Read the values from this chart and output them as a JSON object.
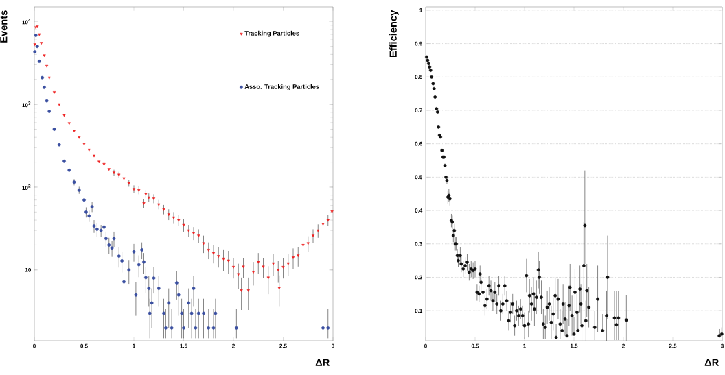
{
  "chart_data": [
    {
      "type": "scatter",
      "xlabel": "ΔR",
      "ylabel": "Events",
      "xlim": [
        0,
        3
      ],
      "xticks": [
        0,
        0.5,
        1,
        1.5,
        2,
        2.5,
        3
      ],
      "ylim": [
        1.4,
        15000
      ],
      "yticks": [
        {
          "value": 10,
          "label": "10"
        },
        {
          "value": 100,
          "label": "10$^{2}$"
        },
        {
          "value": 1000,
          "label": "10$^{3}$"
        },
        {
          "value": 10000,
          "label": "10$^{4}$"
        }
      ],
      "log": "y",
      "legend": "top right",
      "series": [
        {
          "name": "Tracking Particles",
          "color": "#ee2222",
          "marker": "triangle",
          "x": [
            0.005,
            0.015,
            0.03,
            0.05,
            0.07,
            0.1,
            0.125,
            0.15,
            0.2,
            0.25,
            0.3,
            0.35,
            0.4,
            0.45,
            0.5,
            0.55,
            0.6,
            0.65,
            0.7,
            0.75,
            0.8,
            0.85,
            0.9,
            0.95,
            1.0,
            1.05,
            1.1,
            1.12,
            1.15,
            1.2,
            1.25,
            1.3,
            1.35,
            1.4,
            1.45,
            1.5,
            1.55,
            1.6,
            1.65,
            1.7,
            1.75,
            1.8,
            1.85,
            1.9,
            1.95,
            2.0,
            2.05,
            2.08,
            2.1,
            2.15,
            2.2,
            2.25,
            2.3,
            2.35,
            2.4,
            2.45,
            2.46,
            2.5,
            2.55,
            2.6,
            2.65,
            2.7,
            2.75,
            2.8,
            2.85,
            2.9,
            2.95,
            2.99
          ],
          "values": [
            5300,
            8500,
            8700,
            7000,
            5500,
            3900,
            2900,
            2100,
            1400,
            1000,
            740,
            590,
            480,
            400,
            334,
            283,
            240,
            203,
            190,
            165,
            150,
            141,
            128,
            112,
            95,
            92,
            64,
            83,
            75,
            73,
            62,
            54,
            47,
            43,
            40,
            35,
            30,
            28,
            26,
            21,
            17.5,
            16,
            14.7,
            13.7,
            13,
            10.9,
            8.9,
            5.7,
            11,
            5.7,
            9.5,
            12.5,
            11,
            8.1,
            12,
            10,
            6.1,
            10.9,
            12,
            14.2,
            15,
            20,
            21,
            26,
            30,
            36,
            40,
            51
          ],
          "errors": [
            null,
            null,
            null,
            null,
            null,
            null,
            null,
            null,
            null,
            null,
            null,
            null,
            null,
            null,
            null,
            null,
            null,
            null,
            null,
            null,
            12,
            12,
            11,
            11,
            10,
            10,
            8,
            9,
            9,
            9,
            8,
            7,
            7,
            7,
            6,
            6,
            5,
            5,
            5,
            5,
            4,
            4,
            4,
            4,
            4,
            3,
            3,
            2.4,
            3,
            2.4,
            3,
            3.5,
            3,
            3,
            3.5,
            3,
            2.5,
            3,
            3.5,
            4,
            4,
            4.5,
            4.5,
            5,
            5.5,
            6,
            6,
            7
          ]
        },
        {
          "name": "Asso. Tracking Particles",
          "color": "#3a4fa0",
          "marker": "circle",
          "x": [
            0.005,
            0.015,
            0.03,
            0.05,
            0.08,
            0.1,
            0.125,
            0.15,
            0.2,
            0.25,
            0.3,
            0.35,
            0.4,
            0.45,
            0.5,
            0.52,
            0.55,
            0.58,
            0.6,
            0.63,
            0.67,
            0.7,
            0.72,
            0.75,
            0.78,
            0.8,
            0.85,
            0.88,
            0.9,
            0.95,
            1.0,
            1.02,
            1.05,
            1.08,
            1.1,
            1.12,
            1.15,
            1.16,
            1.18,
            1.2,
            1.25,
            1.3,
            1.32,
            1.35,
            1.38,
            1.43,
            1.45,
            1.48,
            1.5,
            1.55,
            1.58,
            1.6,
            1.62,
            1.65,
            1.7,
            1.75,
            1.8,
            1.82,
            2.03,
            2.9,
            2.95
          ],
          "values": [
            4300,
            6800,
            5000,
            3300,
            2100,
            1600,
            1100,
            820,
            500,
            325,
            205,
            160,
            115,
            92,
            70,
            50,
            45,
            58,
            34,
            31,
            30,
            33,
            24,
            20,
            18.4,
            24,
            14.7,
            12.9,
            7.2,
            10,
            16.6,
            5,
            11.6,
            17.5,
            12.5,
            8.1,
            6,
            3,
            4,
            8,
            6,
            3,
            2,
            4,
            2,
            7,
            5,
            3,
            2,
            4,
            3,
            6,
            2,
            3,
            3,
            2,
            2,
            3,
            2,
            2,
            2
          ],
          "errors": [
            null,
            null,
            null,
            null,
            null,
            null,
            null,
            null,
            null,
            null,
            null,
            null,
            10,
            9,
            8,
            7,
            7,
            8,
            6,
            6,
            5,
            6,
            5,
            4.5,
            4,
            5,
            4,
            3.6,
            2.7,
            3.2,
            4,
            2.2,
            3.4,
            4,
            3.5,
            2.8,
            2.4,
            1.5,
            2,
            2.8,
            2.4,
            1.5,
            [
              1.5,
              3.4
            ],
            2,
            [
              1.5,
              3.4
            ],
            2.6,
            2.2,
            1.5,
            [
              1.5,
              3.4
            ],
            2,
            1.5,
            2.4,
            [
              1.5,
              3.4
            ],
            1.5,
            1.5,
            [
              1.5,
              3.4
            ],
            [
              1.5,
              3.4
            ],
            1.5,
            [
              1.5,
              3.4
            ],
            [
              1.5,
              3.4
            ],
            [
              1.5,
              3.4
            ]
          ]
        }
      ]
    },
    {
      "type": "scatter",
      "xlabel": "ΔR",
      "ylabel": "Efficiency",
      "xlim": [
        0,
        3
      ],
      "xticks": [
        0,
        0.5,
        1,
        1.5,
        2,
        2.5,
        3
      ],
      "ylim": [
        0.01,
        1.01
      ],
      "yticks": [
        0.1,
        0.2,
        0.3,
        0.4,
        0.5,
        0.6,
        0.7,
        0.8,
        0.9,
        1
      ],
      "grid": "y",
      "series": [
        {
          "color": "#111111",
          "marker": "circle",
          "x": [
            0.01,
            0.02,
            0.03,
            0.04,
            0.05,
            0.06,
            0.075,
            0.085,
            0.095,
            0.11,
            0.12,
            0.13,
            0.14,
            0.15,
            0.165,
            0.175,
            0.185,
            0.195,
            0.205,
            0.215,
            0.225,
            0.235,
            0.245,
            0.26,
            0.27,
            0.28,
            0.29,
            0.3,
            0.31,
            0.32,
            0.33,
            0.35,
            0.36,
            0.38,
            0.4,
            0.42,
            0.44,
            0.46,
            0.48,
            0.5,
            0.52,
            0.54,
            0.55,
            0.56,
            0.58,
            0.6,
            0.62,
            0.64,
            0.66,
            0.68,
            0.7,
            0.72,
            0.74,
            0.76,
            0.78,
            0.8,
            0.82,
            0.84,
            0.86,
            0.88,
            0.9,
            0.92,
            0.94,
            0.96,
            0.98,
            1.0,
            1.02,
            1.04,
            1.05,
            1.07,
            1.09,
            1.1,
            1.12,
            1.14,
            1.15,
            1.17,
            1.19,
            1.21,
            1.23,
            1.25,
            1.27,
            1.29,
            1.31,
            1.32,
            1.34,
            1.36,
            1.38,
            1.39,
            1.41,
            1.43,
            1.45,
            1.46,
            1.48,
            1.5,
            1.51,
            1.53,
            1.54,
            1.56,
            1.57,
            1.58,
            1.6,
            1.61,
            1.62,
            1.63,
            1.65,
            1.71,
            1.74,
            1.79,
            1.83,
            1.84,
            1.91,
            1.93,
            1.95,
            2.03,
            2.97,
            2.995
          ],
          "values": [
            0.86,
            0.85,
            0.84,
            0.83,
            0.82,
            0.8,
            0.78,
            0.765,
            0.74,
            0.705,
            0.695,
            0.65,
            0.625,
            0.62,
            0.58,
            0.56,
            0.56,
            0.535,
            0.5,
            0.49,
            0.44,
            0.445,
            0.435,
            0.37,
            0.365,
            0.325,
            0.34,
            0.3,
            0.3,
            0.265,
            0.25,
            0.265,
            0.24,
            0.225,
            0.235,
            0.245,
            0.215,
            0.225,
            0.22,
            0.225,
            0.155,
            0.15,
            0.21,
            0.185,
            0.155,
            0.115,
            0.135,
            0.175,
            0.16,
            0.13,
            0.155,
            0.12,
            0.175,
            0.1,
            0.12,
            0.175,
            0.13,
            0.07,
            0.095,
            0.12,
            0.055,
            0.1,
            0.085,
            0.105,
            0.085,
            0.055,
            0.205,
            0.06,
            0.145,
            0.12,
            0.15,
            0.105,
            0.14,
            0.222,
            0.2,
            0.14,
            0.06,
            0.05,
            0.11,
            0.12,
            0.065,
            0.09,
            0.145,
            0.02,
            0.135,
            0.06,
            0.04,
            0.12,
            0.075,
            0.025,
            0.115,
            0.17,
            0.085,
            0.03,
            0.155,
            0.095,
            0.04,
            0.165,
            0.12,
            0.055,
            0.235,
            0.355,
            0.07,
            0.16,
            0.11,
            0.05,
            0.135,
            0.04,
            0.085,
            0.2,
            0.078,
            0.058,
            0.078,
            0.072,
            0.025,
            0.03
          ],
          "errors": [
            null,
            null,
            null,
            null,
            null,
            null,
            null,
            null,
            null,
            null,
            null,
            null,
            null,
            null,
            null,
            null,
            null,
            null,
            0.01,
            0.01,
            0.02,
            0.02,
            0.02,
            0.02,
            0.02,
            0.02,
            0.02,
            0.02,
            0.02,
            0.02,
            0.02,
            0.025,
            0.025,
            0.025,
            0.025,
            0.025,
            0.025,
            0.025,
            0.025,
            0.025,
            0.025,
            0.025,
            0.025,
            0.025,
            0.025,
            0.03,
            0.03,
            0.03,
            0.03,
            0.03,
            0.03,
            0.03,
            0.03,
            0.03,
            0.03,
            0.03,
            0.03,
            0.03,
            0.03,
            0.03,
            0.03,
            0.03,
            0.03,
            0.03,
            0.03,
            0.04,
            0.05,
            0.04,
            0.05,
            0.05,
            0.05,
            0.05,
            0.05,
            0.055,
            0.05,
            0.05,
            0.045,
            0.035,
            0.05,
            0.05,
            0.05,
            0.05,
            0.055,
            [
              0.02,
              0.06
            ],
            0.06,
            0.045,
            [
              0.04,
              0.1
            ],
            0.06,
            0.05,
            [
              0.025,
              0.075
            ],
            0.06,
            0.07,
            0.06,
            [
              0.03,
              0.08
            ],
            0.07,
            0.06,
            [
              0.04,
              0.1
            ],
            0.07,
            0.06,
            0.045,
            [
              0.125,
              0.365
            ],
            [
              0.24,
              0.52
            ],
            0.06,
            0.08,
            0.06,
            [
              0.012,
              0.1
            ],
            0.1,
            [
              0.04,
              0.09
            ],
            0.075,
            0.125,
            [
              0.012,
              0.158
            ],
            [
              0.012,
              0.158
            ],
            [
              0.012,
              0.158
            ],
            0.075,
            [
              0.025,
              0.045
            ],
            [
              0.03,
              0.05
            ]
          ]
        }
      ]
    }
  ]
}
